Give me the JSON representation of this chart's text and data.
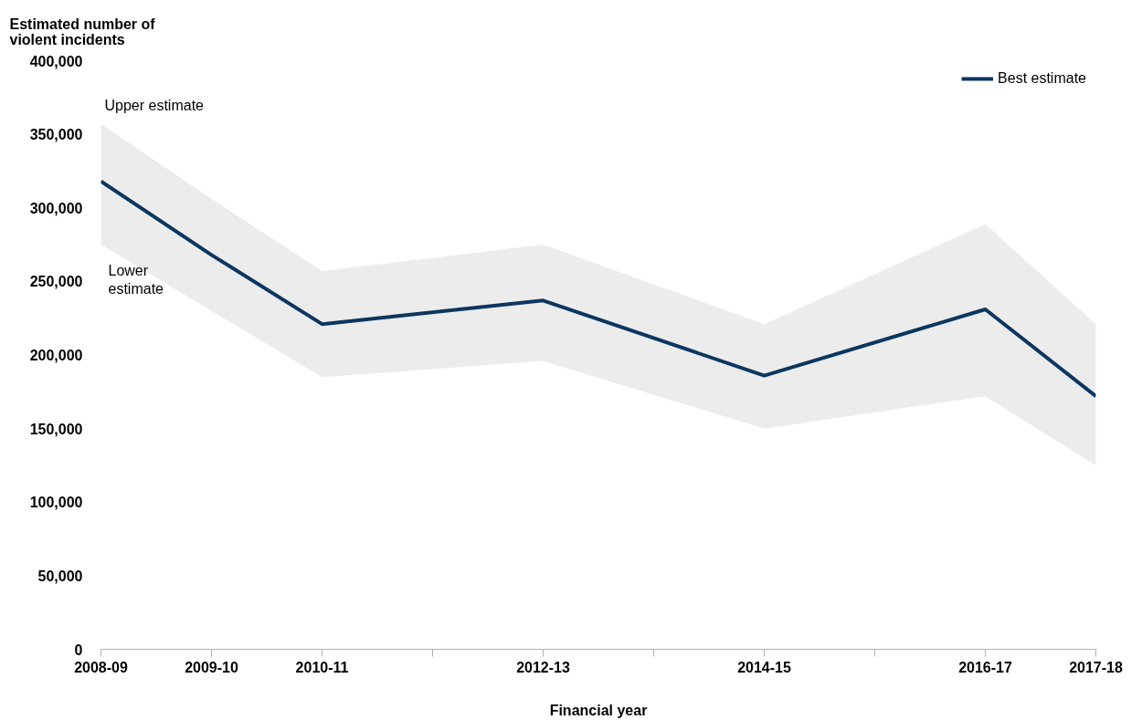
{
  "chart_data": {
    "type": "line",
    "ylabel": "Estimated number of violent incidents",
    "xlabel": "Financial year",
    "categories": [
      "2008-09",
      "2009-10",
      "2010-11",
      null,
      "2012-13",
      null,
      "2014-15",
      null,
      "2016-17",
      "2017-18"
    ],
    "series": [
      {
        "name": "Best estimate",
        "color": "#0b3660",
        "values": [
          318000,
          268000,
          221000,
          null,
          237000,
          null,
          186000,
          null,
          231000,
          172000
        ],
        "lower": [
          275000,
          230000,
          185000,
          null,
          196000,
          null,
          150000,
          null,
          172000,
          125000
        ],
        "upper": [
          357000,
          306000,
          257000,
          null,
          275000,
          null,
          221000,
          null,
          289000,
          221000
        ]
      }
    ],
    "ylim": [
      0,
      400000
    ],
    "yticks": [
      {
        "value": 0,
        "label": "0"
      },
      {
        "value": 50000,
        "label": "50,000"
      },
      {
        "value": 100000,
        "label": "100,000"
      },
      {
        "value": 150000,
        "label": "150,000"
      },
      {
        "value": 200000,
        "label": "200,000"
      },
      {
        "value": 250000,
        "label": "250,000"
      },
      {
        "value": 300000,
        "label": "300,000"
      },
      {
        "value": 350000,
        "label": "350,000"
      },
      {
        "value": 400000,
        "label": "400,000"
      }
    ],
    "annotations": [
      "Upper estimate",
      "Lower estimate"
    ],
    "legend": "top right",
    "grid": false,
    "marker": "none",
    "line_style": "solid"
  }
}
